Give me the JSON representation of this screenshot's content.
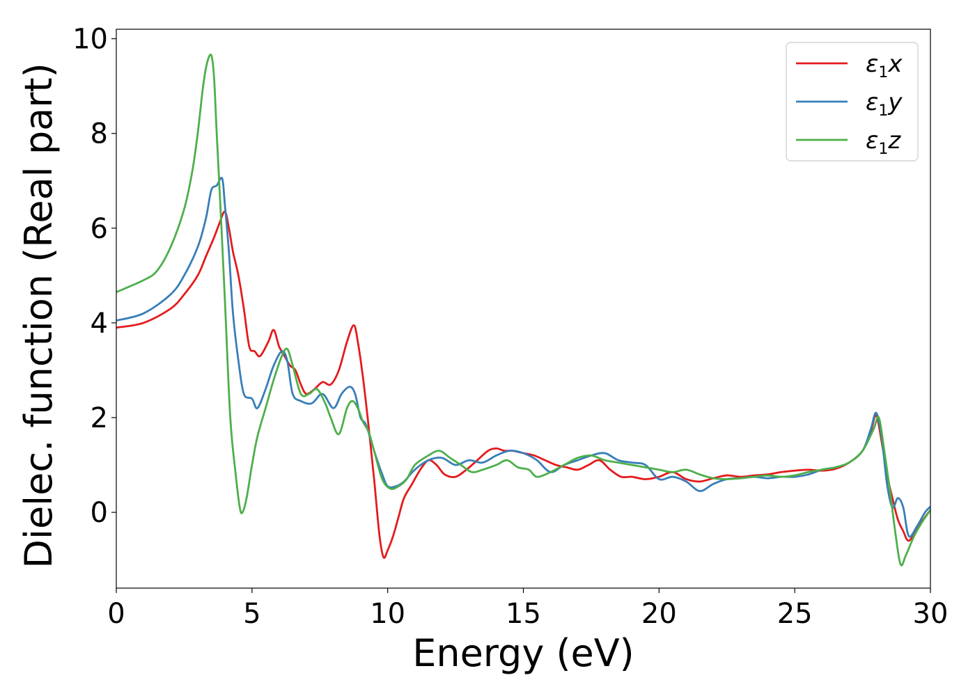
{
  "chart_data": {
    "type": "line",
    "xlabel": "Energy (eV)",
    "ylabel": "Dielec. function (Real part)",
    "xlim": [
      0,
      30
    ],
    "ylim": [
      -1.6,
      10.2
    ],
    "xticks": [
      0,
      5,
      10,
      15,
      20,
      25,
      30
    ],
    "yticks": [
      0,
      2,
      4,
      6,
      8,
      10
    ],
    "legend_position": "top-right",
    "grid": false,
    "series": [
      {
        "name": "ε1x",
        "legend_base": "ε",
        "legend_sub": "1",
        "legend_var": "x",
        "color": "#e41a1c",
        "x": [
          0,
          1,
          2,
          2.5,
          3,
          3.3,
          3.6,
          3.8,
          4.0,
          4.15,
          4.3,
          4.5,
          4.7,
          4.9,
          5.1,
          5.3,
          5.6,
          5.8,
          6.0,
          6.2,
          6.4,
          6.6,
          6.8,
          7.0,
          7.3,
          7.6,
          7.9,
          8.2,
          8.5,
          8.75,
          8.9,
          9.1,
          9.3,
          9.5,
          9.7,
          9.85,
          10.0,
          10.2,
          10.4,
          10.6,
          10.9,
          11.2,
          11.5,
          11.8,
          12.1,
          12.5,
          12.9,
          13.3,
          13.7,
          14.0,
          14.3,
          14.6,
          15.0,
          15.4,
          15.8,
          16.2,
          16.6,
          17.0,
          17.4,
          17.8,
          18.2,
          18.6,
          19.0,
          19.5,
          20.0,
          20.5,
          21.0,
          21.5,
          22.0,
          22.5,
          23.0,
          23.5,
          24.0,
          24.5,
          25.0,
          25.5,
          26.0,
          26.5,
          27.0,
          27.5,
          27.8,
          28.0,
          28.2,
          28.4,
          28.6,
          28.8,
          29.0,
          29.2,
          29.5,
          29.8,
          30.0
        ],
        "y": [
          3.9,
          4.0,
          4.3,
          4.6,
          5.0,
          5.4,
          5.8,
          6.1,
          6.35,
          6.0,
          5.5,
          5.0,
          4.3,
          3.5,
          3.4,
          3.3,
          3.6,
          3.85,
          3.5,
          3.3,
          3.1,
          3.0,
          2.7,
          2.5,
          2.6,
          2.75,
          2.7,
          3.0,
          3.6,
          3.95,
          3.6,
          2.8,
          1.8,
          0.7,
          -0.5,
          -0.95,
          -0.8,
          -0.5,
          -0.1,
          0.3,
          0.6,
          0.9,
          1.1,
          1.0,
          0.8,
          0.75,
          0.9,
          1.1,
          1.3,
          1.35,
          1.3,
          1.3,
          1.25,
          1.2,
          1.1,
          1.0,
          0.95,
          0.9,
          1.0,
          1.1,
          0.9,
          0.75,
          0.75,
          0.7,
          0.75,
          0.85,
          0.7,
          0.65,
          0.72,
          0.78,
          0.75,
          0.78,
          0.8,
          0.85,
          0.88,
          0.9,
          0.88,
          0.92,
          1.05,
          1.3,
          1.7,
          2.05,
          1.5,
          0.8,
          0.3,
          -0.15,
          -0.4,
          -0.6,
          -0.35,
          -0.1,
          0.05
        ]
      },
      {
        "name": "ε1y",
        "legend_base": "ε",
        "legend_sub": "1",
        "legend_var": "y",
        "color": "#377eb8",
        "x": [
          0,
          1,
          2,
          2.5,
          3,
          3.3,
          3.5,
          3.7,
          3.9,
          4.0,
          4.15,
          4.3,
          4.5,
          4.7,
          5.0,
          5.2,
          5.5,
          5.8,
          6.1,
          6.3,
          6.5,
          6.8,
          7.2,
          7.6,
          8.0,
          8.3,
          8.6,
          8.8,
          9.0,
          9.2,
          9.5,
          9.8,
          10.0,
          10.3,
          10.6,
          11.0,
          11.5,
          12.0,
          12.5,
          13.0,
          13.5,
          14.0,
          14.5,
          15.0,
          15.5,
          16.0,
          16.5,
          17.0,
          17.5,
          18.0,
          18.5,
          19.0,
          19.5,
          20.0,
          20.5,
          21.0,
          21.5,
          22.0,
          22.5,
          23.0,
          23.5,
          24.0,
          24.5,
          25.0,
          25.5,
          26.0,
          26.5,
          27.0,
          27.5,
          27.8,
          28.0,
          28.2,
          28.4,
          28.6,
          28.8,
          29.0,
          29.2,
          29.5,
          29.8,
          30.0
        ],
        "y": [
          4.05,
          4.2,
          4.6,
          5.0,
          5.6,
          6.2,
          6.8,
          6.9,
          7.05,
          6.5,
          5.5,
          4.2,
          3.2,
          2.5,
          2.4,
          2.2,
          2.6,
          3.1,
          3.4,
          3.2,
          2.5,
          2.35,
          2.3,
          2.5,
          2.2,
          2.5,
          2.65,
          2.5,
          2.0,
          1.85,
          1.3,
          0.8,
          0.55,
          0.55,
          0.65,
          0.9,
          1.1,
          1.15,
          1.0,
          1.1,
          1.05,
          1.2,
          1.3,
          1.25,
          1.1,
          0.85,
          1.0,
          1.1,
          1.2,
          1.25,
          1.1,
          1.05,
          1.0,
          0.7,
          0.75,
          0.65,
          0.45,
          0.6,
          0.7,
          0.72,
          0.75,
          0.72,
          0.75,
          0.75,
          0.8,
          0.9,
          0.95,
          1.05,
          1.3,
          1.75,
          2.1,
          1.6,
          0.6,
          0.1,
          0.3,
          0.1,
          -0.5,
          -0.3,
          0.0,
          0.12
        ]
      },
      {
        "name": "ε1z",
        "legend_base": "ε",
        "legend_sub": "1",
        "legend_var": "z",
        "color": "#4daf4a",
        "x": [
          0,
          1,
          1.5,
          2,
          2.5,
          2.8,
          3.0,
          3.2,
          3.35,
          3.5,
          3.6,
          3.7,
          3.85,
          4.0,
          4.2,
          4.4,
          4.55,
          4.65,
          4.8,
          5.0,
          5.2,
          5.5,
          5.8,
          6.1,
          6.3,
          6.5,
          6.8,
          7.1,
          7.4,
          7.7,
          7.9,
          8.2,
          8.5,
          8.7,
          8.9,
          9.1,
          9.3,
          9.5,
          9.8,
          10.1,
          10.4,
          10.7,
          11.0,
          11.5,
          11.9,
          12.3,
          12.7,
          13.1,
          13.5,
          14.0,
          14.4,
          14.8,
          15.2,
          15.5,
          16.0,
          16.5,
          17.0,
          17.5,
          18.0,
          18.5,
          19.0,
          19.5,
          20.0,
          20.5,
          21.0,
          21.5,
          22.0,
          22.5,
          23.0,
          23.5,
          24.0,
          24.5,
          25.0,
          25.5,
          26.0,
          26.5,
          27.0,
          27.5,
          27.9,
          28.1,
          28.3,
          28.5,
          28.7,
          28.9,
          29.1,
          29.4,
          29.7,
          30.0
        ],
        "y": [
          4.65,
          4.9,
          5.1,
          5.6,
          6.4,
          7.2,
          8.0,
          9.0,
          9.5,
          9.65,
          9.2,
          8.0,
          6.3,
          4.5,
          2.0,
          0.8,
          0.1,
          0.0,
          0.3,
          1.0,
          1.6,
          2.2,
          2.8,
          3.3,
          3.45,
          3.1,
          2.5,
          2.5,
          2.6,
          2.3,
          2.0,
          1.65,
          2.2,
          2.35,
          2.2,
          1.9,
          1.7,
          1.3,
          0.7,
          0.5,
          0.55,
          0.7,
          1.0,
          1.2,
          1.3,
          1.15,
          1.0,
          0.85,
          0.9,
          1.0,
          1.1,
          0.95,
          0.9,
          0.75,
          0.85,
          1.0,
          1.15,
          1.2,
          1.1,
          1.05,
          1.0,
          0.95,
          0.9,
          0.85,
          0.9,
          0.8,
          0.72,
          0.7,
          0.72,
          0.75,
          0.78,
          0.75,
          0.78,
          0.85,
          0.9,
          0.95,
          1.05,
          1.3,
          1.75,
          2.0,
          1.3,
          0.5,
          -0.4,
          -1.1,
          -0.9,
          -0.5,
          -0.2,
          0.05
        ]
      }
    ]
  }
}
